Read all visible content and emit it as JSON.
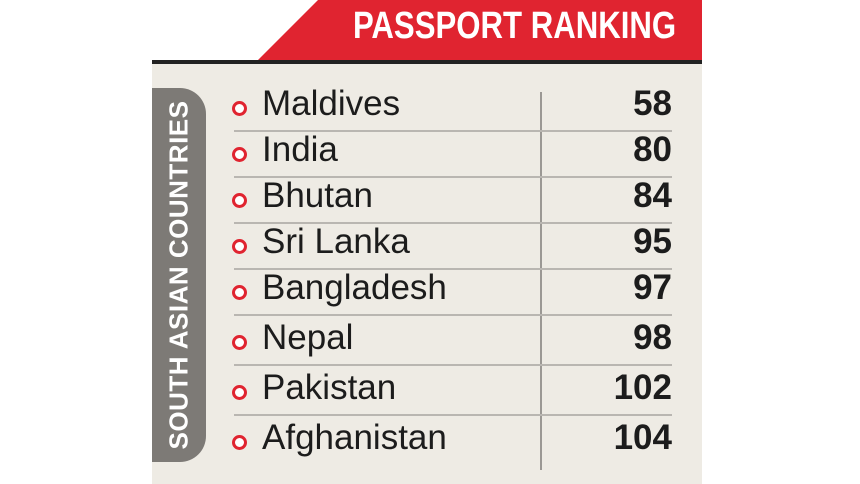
{
  "banner": {
    "title": "PASSPORT RANKING"
  },
  "side_label": "SOUTH ASIAN COUNTRIES",
  "colors": {
    "accent": "#e02430",
    "panel": "#eeebe4",
    "side_tab": "#7d7a76",
    "text": "#1c1c1c"
  },
  "chart_data": {
    "type": "table",
    "title": "PASSPORT RANKING",
    "group_label": "SOUTH ASIAN COUNTRIES",
    "categories": [
      "Maldives",
      "India",
      "Bhutan",
      "Sri Lanka",
      "Bangladesh",
      "Nepal",
      "Pakistan",
      "Afghanistan"
    ],
    "values": [
      58,
      80,
      84,
      95,
      97,
      98,
      102,
      104
    ]
  }
}
